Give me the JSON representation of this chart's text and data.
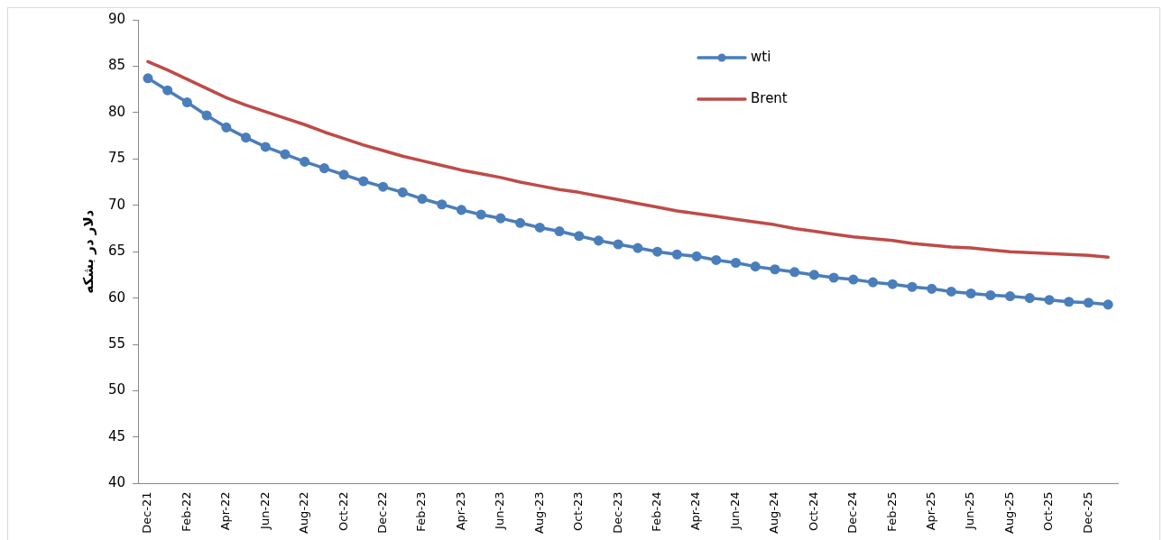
{
  "chart_data": {
    "type": "line",
    "ylabel": "دلار در بشکه",
    "categories": [
      "Dec-21",
      null,
      "Feb-22",
      null,
      "Apr-22",
      null,
      "Jun-22",
      null,
      "Aug-22",
      null,
      "Oct-22",
      null,
      "Dec-22",
      null,
      "Feb-23",
      null,
      "Apr-23",
      null,
      "Jun-23",
      null,
      "Aug-23",
      null,
      "Oct-23",
      null,
      "Dec-23",
      null,
      "Feb-24",
      null,
      "Apr-24",
      null,
      "Jun-24",
      null,
      "Aug-24",
      null,
      "Oct-24",
      null,
      "Dec-24",
      null,
      "Feb-25",
      null,
      "Apr-25",
      null,
      "Jun-25",
      null,
      "Aug-25",
      null,
      "Oct-25",
      null,
      "Dec-25",
      null
    ],
    "series": [
      {
        "name": "wti",
        "color": "#4a7ebb",
        "marker": "circle",
        "values": [
          83.7,
          82.4,
          81.1,
          79.7,
          78.4,
          77.3,
          76.3,
          75.5,
          74.7,
          74.0,
          73.3,
          72.6,
          72.0,
          71.4,
          70.7,
          70.1,
          69.5,
          69.0,
          68.6,
          68.1,
          67.6,
          67.2,
          66.7,
          66.2,
          65.8,
          65.4,
          65.0,
          64.7,
          64.5,
          64.1,
          63.8,
          63.4,
          63.1,
          62.8,
          62.5,
          62.2,
          62.0,
          61.7,
          61.5,
          61.2,
          61.0,
          60.7,
          60.5,
          60.3,
          60.2,
          60.0,
          59.8,
          59.6,
          59.5,
          59.3
        ]
      },
      {
        "name": "Brent",
        "color": "#be4b48",
        "marker": "none",
        "values": [
          85.5,
          84.6,
          83.6,
          82.6,
          81.6,
          80.8,
          80.1,
          79.4,
          78.7,
          77.9,
          77.2,
          76.5,
          75.9,
          75.3,
          74.8,
          74.3,
          73.8,
          73.4,
          73.0,
          72.5,
          72.1,
          71.7,
          71.4,
          71.0,
          70.6,
          70.2,
          69.8,
          69.4,
          69.1,
          68.8,
          68.5,
          68.2,
          67.9,
          67.5,
          67.2,
          66.9,
          66.6,
          66.4,
          66.2,
          65.9,
          65.7,
          65.5,
          65.4,
          65.2,
          65.0,
          64.9,
          64.8,
          64.7,
          64.6,
          64.4
        ]
      }
    ],
    "ylim": [
      40,
      90
    ],
    "yticks": [
      40,
      45,
      50,
      55,
      60,
      65,
      70,
      75,
      80,
      85,
      90
    ],
    "legend": "top right"
  }
}
